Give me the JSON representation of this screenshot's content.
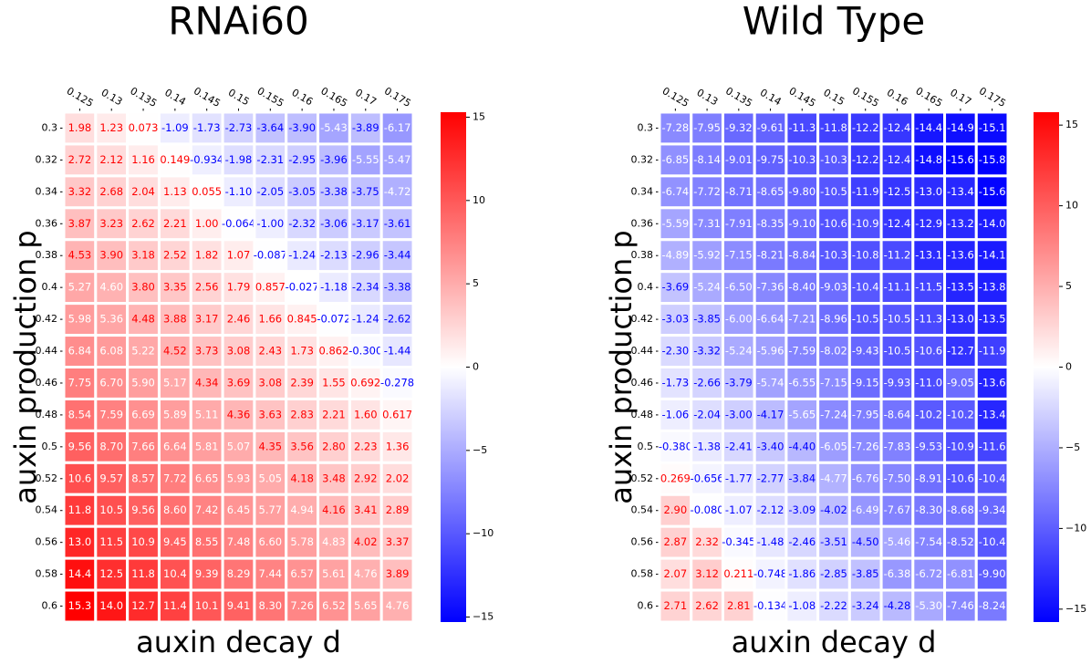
{
  "chart_data": [
    {
      "type": "heatmap",
      "title": "RNAi60",
      "xlabel": "auxin decay d",
      "ylabel": "auxin production p",
      "x": [
        "0.125",
        "0.13",
        "0.135",
        "0.14",
        "0.145",
        "0.15",
        "0.155",
        "0.16",
        "0.165",
        "0.17",
        "0.175"
      ],
      "y": [
        "0.3",
        "0.32",
        "0.34",
        "0.36",
        "0.38",
        "0.4",
        "0.42",
        "0.44",
        "0.46",
        "0.48",
        "0.5",
        "0.52",
        "0.54",
        "0.56",
        "0.58",
        "0.6"
      ],
      "values": [
        [
          1.98,
          1.23,
          0.073,
          -1.09,
          -1.73,
          -2.73,
          -3.64,
          -3.9,
          -5.43,
          -3.89,
          -6.17
        ],
        [
          2.72,
          2.12,
          1.16,
          0.149,
          -0.934,
          -1.98,
          -2.31,
          -2.95,
          -3.96,
          -5.55,
          -5.47
        ],
        [
          3.32,
          2.68,
          2.04,
          1.13,
          0.055,
          -1.1,
          -2.05,
          -3.05,
          -3.38,
          -3.75,
          -4.72
        ],
        [
          3.87,
          3.23,
          2.62,
          2.21,
          1.0,
          -0.064,
          -1.0,
          -2.32,
          -3.06,
          -3.17,
          -3.61
        ],
        [
          4.53,
          3.9,
          3.18,
          2.52,
          1.82,
          1.07,
          -0.087,
          -1.24,
          -2.13,
          -2.96,
          -3.44
        ],
        [
          5.27,
          4.6,
          3.8,
          3.35,
          2.56,
          1.79,
          0.857,
          -0.027,
          -1.18,
          -2.34,
          -3.38
        ],
        [
          5.98,
          5.36,
          4.48,
          3.88,
          3.17,
          2.46,
          1.66,
          0.845,
          -0.072,
          -1.24,
          -2.62
        ],
        [
          6.84,
          6.08,
          5.22,
          4.52,
          3.73,
          3.08,
          2.43,
          1.73,
          0.862,
          -0.3,
          -1.44
        ],
        [
          7.75,
          6.7,
          5.9,
          5.17,
          4.34,
          3.69,
          3.08,
          2.39,
          1.55,
          0.692,
          -0.278
        ],
        [
          8.54,
          7.59,
          6.69,
          5.89,
          5.11,
          4.36,
          3.63,
          2.83,
          2.21,
          1.6,
          0.617
        ],
        [
          9.56,
          8.7,
          7.66,
          6.64,
          5.81,
          5.07,
          4.35,
          3.56,
          2.8,
          2.23,
          1.36
        ],
        [
          10.6,
          9.57,
          8.57,
          7.72,
          6.65,
          5.93,
          5.05,
          4.18,
          3.48,
          2.92,
          2.02
        ],
        [
          11.8,
          10.5,
          9.56,
          8.6,
          7.42,
          6.45,
          5.77,
          4.94,
          4.16,
          3.41,
          2.89
        ],
        [
          13.0,
          11.5,
          10.9,
          9.45,
          8.55,
          7.48,
          6.6,
          5.78,
          4.83,
          4.02,
          3.37
        ],
        [
          14.4,
          12.5,
          11.8,
          10.4,
          9.39,
          8.29,
          7.44,
          6.57,
          5.61,
          4.76,
          3.89
        ],
        [
          15.3,
          14.0,
          12.7,
          11.4,
          10.1,
          9.41,
          8.3,
          7.26,
          6.52,
          5.65,
          4.76
        ]
      ],
      "value_labels": [
        [
          "1.98",
          "1.23",
          "0.073",
          "-1.09",
          "-1.73",
          "-2.73",
          "-3.64",
          "-3.90",
          "-5.43",
          "-3.89",
          "-6.17"
        ],
        [
          "2.72",
          "2.12",
          "1.16",
          "0.149",
          "-0.934",
          "-1.98",
          "-2.31",
          "-2.95",
          "-3.96",
          "-5.55",
          "-5.47"
        ],
        [
          "3.32",
          "2.68",
          "2.04",
          "1.13",
          "0.055",
          "-1.10",
          "-2.05",
          "-3.05",
          "-3.38",
          "-3.75",
          "-4.72"
        ],
        [
          "3.87",
          "3.23",
          "2.62",
          "2.21",
          "1.00",
          "-0.064",
          "-1.00",
          "-2.32",
          "-3.06",
          "-3.17",
          "-3.61"
        ],
        [
          "4.53",
          "3.90",
          "3.18",
          "2.52",
          "1.82",
          "1.07",
          "-0.087",
          "-1.24",
          "-2.13",
          "-2.96",
          "-3.44"
        ],
        [
          "5.27",
          "4.60",
          "3.80",
          "3.35",
          "2.56",
          "1.79",
          "0.857",
          "-0.027",
          "-1.18",
          "-2.34",
          "-3.38"
        ],
        [
          "5.98",
          "5.36",
          "4.48",
          "3.88",
          "3.17",
          "2.46",
          "1.66",
          "0.845",
          "-0.072",
          "-1.24",
          "-2.62"
        ],
        [
          "6.84",
          "6.08",
          "5.22",
          "4.52",
          "3.73",
          "3.08",
          "2.43",
          "1.73",
          "0.862",
          "-0.300",
          "-1.44"
        ],
        [
          "7.75",
          "6.70",
          "5.90",
          "5.17",
          "4.34",
          "3.69",
          "3.08",
          "2.39",
          "1.55",
          "0.692",
          "-0.278"
        ],
        [
          "8.54",
          "7.59",
          "6.69",
          "5.89",
          "5.11",
          "4.36",
          "3.63",
          "2.83",
          "2.21",
          "1.60",
          "0.617"
        ],
        [
          "9.56",
          "8.70",
          "7.66",
          "6.64",
          "5.81",
          "5.07",
          "4.35",
          "3.56",
          "2.80",
          "2.23",
          "1.36"
        ],
        [
          "10.6",
          "9.57",
          "8.57",
          "7.72",
          "6.65",
          "5.93",
          "5.05",
          "4.18",
          "3.48",
          "2.92",
          "2.02"
        ],
        [
          "11.8",
          "10.5",
          "9.56",
          "8.60",
          "7.42",
          "6.45",
          "5.77",
          "4.94",
          "4.16",
          "3.41",
          "2.89"
        ],
        [
          "13.0",
          "11.5",
          "10.9",
          "9.45",
          "8.55",
          "7.48",
          "6.60",
          "5.78",
          "4.83",
          "4.02",
          "3.37"
        ],
        [
          "14.4",
          "12.5",
          "11.8",
          "10.4",
          "9.39",
          "8.29",
          "7.44",
          "6.57",
          "5.61",
          "4.76",
          "3.89"
        ],
        [
          "15.3",
          "14.0",
          "12.7",
          "11.4",
          "10.1",
          "9.41",
          "8.30",
          "7.26",
          "6.52",
          "5.65",
          "4.76"
        ]
      ],
      "colormap": [
        "#0000ff",
        "#ffffff",
        "#ff0000"
      ],
      "clim": [
        -15.3,
        15.3
      ],
      "cticks": [
        {
          "value": -15,
          "label": "−15"
        },
        {
          "value": -10,
          "label": "−10"
        },
        {
          "value": -5,
          "label": "−5"
        },
        0,
        5,
        10,
        15
      ]
    },
    {
      "type": "heatmap",
      "title": "Wild Type",
      "xlabel": "auxin decay d",
      "ylabel": "auxin production p",
      "x": [
        "0.125",
        "0.13",
        "0.135",
        "0.14",
        "0.145",
        "0.15",
        "0.155",
        "0.16",
        "0.165",
        "0.17",
        "0.175"
      ],
      "y": [
        "0.3",
        "0.32",
        "0.34",
        "0.36",
        "0.38",
        "0.4",
        "0.42",
        "0.44",
        "0.46",
        "0.48",
        "0.5",
        "0.52",
        "0.54",
        "0.56",
        "0.58",
        "0.6"
      ],
      "values": [
        [
          -7.28,
          -7.95,
          -9.32,
          -9.61,
          -11.3,
          -11.8,
          -12.2,
          -12.4,
          -14.4,
          -14.9,
          -15.1
        ],
        [
          -6.85,
          -8.14,
          -9.01,
          -9.75,
          -10.3,
          -10.3,
          -12.2,
          -12.4,
          -14.8,
          -15.6,
          -15.8
        ],
        [
          -6.74,
          -7.72,
          -8.71,
          -8.65,
          -9.8,
          -10.5,
          -11.9,
          -12.5,
          -13.0,
          -13.4,
          -15.6
        ],
        [
          -5.59,
          -7.31,
          -7.91,
          -8.35,
          -9.1,
          -10.6,
          -10.9,
          -12.4,
          -12.9,
          -13.2,
          -14.0
        ],
        [
          -4.89,
          -5.92,
          -7.15,
          -8.21,
          -8.84,
          -10.3,
          -10.8,
          -11.2,
          -13.1,
          -13.6,
          -14.1
        ],
        [
          -3.69,
          -5.24,
          -6.5,
          -7.36,
          -8.4,
          -9.03,
          -10.4,
          -11.1,
          -11.5,
          -13.5,
          -13.8
        ],
        [
          -3.03,
          -3.85,
          -6.0,
          -6.64,
          -7.21,
          -8.96,
          -10.5,
          -10.5,
          -11.3,
          -13.0,
          -13.5
        ],
        [
          -2.3,
          -3.32,
          -5.24,
          -5.96,
          -7.59,
          -8.02,
          -9.43,
          -10.5,
          -10.6,
          -12.7,
          -11.9
        ],
        [
          -1.73,
          -2.66,
          -3.79,
          -5.74,
          -6.55,
          -7.15,
          -9.15,
          -9.93,
          -11.0,
          -9.05,
          -13.6
        ],
        [
          -1.06,
          -2.04,
          -3.0,
          -4.17,
          -5.65,
          -7.24,
          -7.95,
          -8.64,
          -10.2,
          -10.2,
          -13.4
        ],
        [
          -0.38,
          -1.38,
          -2.41,
          -3.4,
          -4.4,
          -6.05,
          -7.26,
          -7.83,
          -9.53,
          -10.9,
          -11.6
        ],
        [
          0.269,
          -0.656,
          -1.77,
          -2.77,
          -3.84,
          -4.77,
          -6.76,
          -7.5,
          -8.91,
          -10.6,
          -10.4
        ],
        [
          2.9,
          -0.08,
          -1.07,
          -2.12,
          -3.09,
          -4.02,
          -6.49,
          -7.67,
          -8.3,
          -8.68,
          -9.34
        ],
        [
          2.87,
          2.32,
          -0.345,
          -1.48,
          -2.46,
          -3.51,
          -4.5,
          -5.46,
          -7.54,
          -8.52,
          -10.4
        ],
        [
          2.07,
          3.12,
          0.211,
          -0.748,
          -1.86,
          -2.85,
          -3.85,
          -6.38,
          -6.72,
          -6.81,
          -9.9
        ],
        [
          2.71,
          2.62,
          2.81,
          -0.134,
          -1.08,
          -2.22,
          -3.24,
          -4.28,
          -5.3,
          -7.46,
          -8.24
        ]
      ],
      "value_labels": [
        [
          "-7.28",
          "-7.95",
          "-9.32",
          "-9.61",
          "-11.3",
          "-11.8",
          "-12.2",
          "-12.4",
          "-14.4",
          "-14.9",
          "-15.1"
        ],
        [
          "-6.85",
          "-8.14",
          "-9.01",
          "-9.75",
          "-10.3",
          "-10.3",
          "-12.2",
          "-12.4",
          "-14.8",
          "-15.6",
          "-15.8"
        ],
        [
          "-6.74",
          "-7.72",
          "-8.71",
          "-8.65",
          "-9.80",
          "-10.5",
          "-11.9",
          "-12.5",
          "-13.0",
          "-13.4",
          "-15.6"
        ],
        [
          "-5.59",
          "-7.31",
          "-7.91",
          "-8.35",
          "-9.10",
          "-10.6",
          "-10.9",
          "-12.4",
          "-12.9",
          "-13.2",
          "-14.0"
        ],
        [
          "-4.89",
          "-5.92",
          "-7.15",
          "-8.21",
          "-8.84",
          "-10.3",
          "-10.8",
          "-11.2",
          "-13.1",
          "-13.6",
          "-14.1"
        ],
        [
          "-3.69",
          "-5.24",
          "-6.50",
          "-7.36",
          "-8.40",
          "-9.03",
          "-10.4",
          "-11.1",
          "-11.5",
          "-13.5",
          "-13.8"
        ],
        [
          "-3.03",
          "-3.85",
          "-6.00",
          "-6.64",
          "-7.21",
          "-8.96",
          "-10.5",
          "-10.5",
          "-11.3",
          "-13.0",
          "-13.5"
        ],
        [
          "-2.30",
          "-3.32",
          "-5.24",
          "-5.96",
          "-7.59",
          "-8.02",
          "-9.43",
          "-10.5",
          "-10.6",
          "-12.7",
          "-11.9"
        ],
        [
          "-1.73",
          "-2.66",
          "-3.79",
          "-5.74",
          "-6.55",
          "-7.15",
          "-9.15",
          "-9.93",
          "-11.0",
          "-9.05",
          "-13.6"
        ],
        [
          "-1.06",
          "-2.04",
          "-3.00",
          "-4.17",
          "-5.65",
          "-7.24",
          "-7.95",
          "-8.64",
          "-10.2",
          "-10.2",
          "-13.4"
        ],
        [
          "-0.380",
          "-1.38",
          "-2.41",
          "-3.40",
          "-4.40",
          "-6.05",
          "-7.26",
          "-7.83",
          "-9.53",
          "-10.9",
          "-11.6"
        ],
        [
          "0.269",
          "-0.656",
          "-1.77",
          "-2.77",
          "-3.84",
          "-4.77",
          "-6.76",
          "-7.50",
          "-8.91",
          "-10.6",
          "-10.4"
        ],
        [
          "2.90",
          "-0.080",
          "-1.07",
          "-2.12",
          "-3.09",
          "-4.02",
          "-6.49",
          "-7.67",
          "-8.30",
          "-8.68",
          "-9.34"
        ],
        [
          "2.87",
          "2.32",
          "-0.345",
          "-1.48",
          "-2.46",
          "-3.51",
          "-4.50",
          "-5.46",
          "-7.54",
          "-8.52",
          "-10.4"
        ],
        [
          "2.07",
          "3.12",
          "0.211",
          "-0.748",
          "-1.86",
          "-2.85",
          "-3.85",
          "-6.38",
          "-6.72",
          "-6.81",
          "-9.90"
        ],
        [
          "2.71",
          "2.62",
          "2.81",
          "-0.134",
          "-1.08",
          "-2.22",
          "-3.24",
          "-4.28",
          "-5.30",
          "-7.46",
          "-8.24"
        ]
      ],
      "colormap": [
        "#0000ff",
        "#ffffff",
        "#ff0000"
      ],
      "clim": [
        -15.8,
        15.8
      ],
      "cticks": [
        {
          "value": -15,
          "label": "−15"
        },
        {
          "value": -10,
          "label": "−10"
        },
        {
          "value": -5,
          "label": "−5"
        },
        0,
        5,
        10,
        15
      ]
    }
  ]
}
